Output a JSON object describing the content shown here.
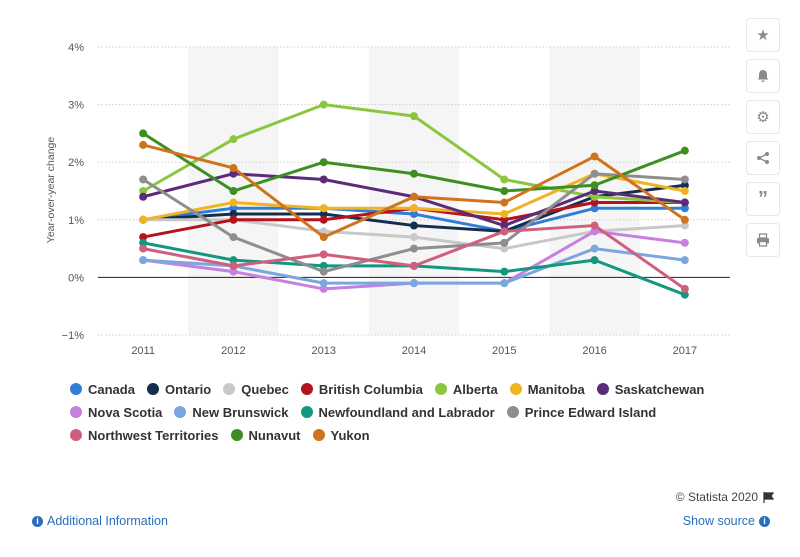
{
  "chart_data": {
    "type": "line",
    "ylabel": "Year-over-year change",
    "x": [
      "2011",
      "2012",
      "2013",
      "2014",
      "2015",
      "2016",
      "2017"
    ],
    "y_ticks": [
      "4%",
      "3%",
      "2%",
      "1%",
      "0%",
      "−1%"
    ],
    "ylim": [
      -1,
      4
    ],
    "grid": true,
    "legend_position": "bottom",
    "series": [
      {
        "name": "Canada",
        "color": "#2f7ed8",
        "values": [
          1.0,
          1.2,
          1.2,
          1.1,
          0.8,
          1.2,
          1.2
        ]
      },
      {
        "name": "Ontario",
        "color": "#142f4d",
        "values": [
          1.0,
          1.1,
          1.1,
          0.9,
          0.8,
          1.4,
          1.6
        ]
      },
      {
        "name": "Quebec",
        "color": "#c8c8c8",
        "values": [
          1.0,
          1.0,
          0.8,
          0.7,
          0.5,
          0.8,
          0.9
        ]
      },
      {
        "name": "British Columbia",
        "color": "#b5121b",
        "values": [
          0.7,
          1.0,
          1.0,
          1.2,
          1.0,
          1.3,
          1.3
        ]
      },
      {
        "name": "Alberta",
        "color": "#8cc63e",
        "values": [
          1.5,
          2.4,
          3.0,
          2.8,
          1.7,
          1.4,
          1.3
        ]
      },
      {
        "name": "Manitoba",
        "color": "#f0b323",
        "values": [
          1.0,
          1.3,
          1.2,
          1.2,
          1.1,
          1.8,
          1.5
        ]
      },
      {
        "name": "Saskatchewan",
        "color": "#5c2a7a",
        "values": [
          1.4,
          1.8,
          1.7,
          1.4,
          0.9,
          1.5,
          1.3
        ]
      },
      {
        "name": "Nova Scotia",
        "color": "#c77fe0",
        "values": [
          0.3,
          0.1,
          -0.2,
          -0.1,
          -0.1,
          0.8,
          0.6
        ]
      },
      {
        "name": "New Brunswick",
        "color": "#7ba7e0",
        "values": [
          0.3,
          0.2,
          -0.1,
          -0.1,
          -0.1,
          0.5,
          0.3
        ]
      },
      {
        "name": "Newfoundland and Labrador",
        "color": "#13977f",
        "values": [
          0.6,
          0.3,
          0.2,
          0.2,
          0.1,
          0.3,
          -0.3
        ]
      },
      {
        "name": "Prince Edward Island",
        "color": "#8e8e8e",
        "values": [
          1.7,
          0.7,
          0.1,
          0.5,
          0.6,
          1.8,
          1.7
        ]
      },
      {
        "name": "Northwest Territories",
        "color": "#d05f7e",
        "values": [
          0.5,
          0.2,
          0.4,
          0.2,
          0.8,
          0.9,
          -0.2
        ]
      },
      {
        "name": "Nunavut",
        "color": "#3d8f21",
        "values": [
          2.5,
          1.5,
          2.0,
          1.8,
          1.5,
          1.6,
          2.2
        ]
      },
      {
        "name": "Yukon",
        "color": "#d0731d",
        "values": [
          2.3,
          1.9,
          0.7,
          1.4,
          1.3,
          2.1,
          1.0
        ]
      }
    ]
  },
  "sidebar": {
    "icons": [
      "star-icon",
      "bell-icon",
      "gear-icon",
      "share-icon",
      "quote-icon",
      "print-icon"
    ]
  },
  "footer": {
    "credit": "© Statista 2020",
    "additional_info": "Additional Information",
    "show_source": "Show source"
  }
}
